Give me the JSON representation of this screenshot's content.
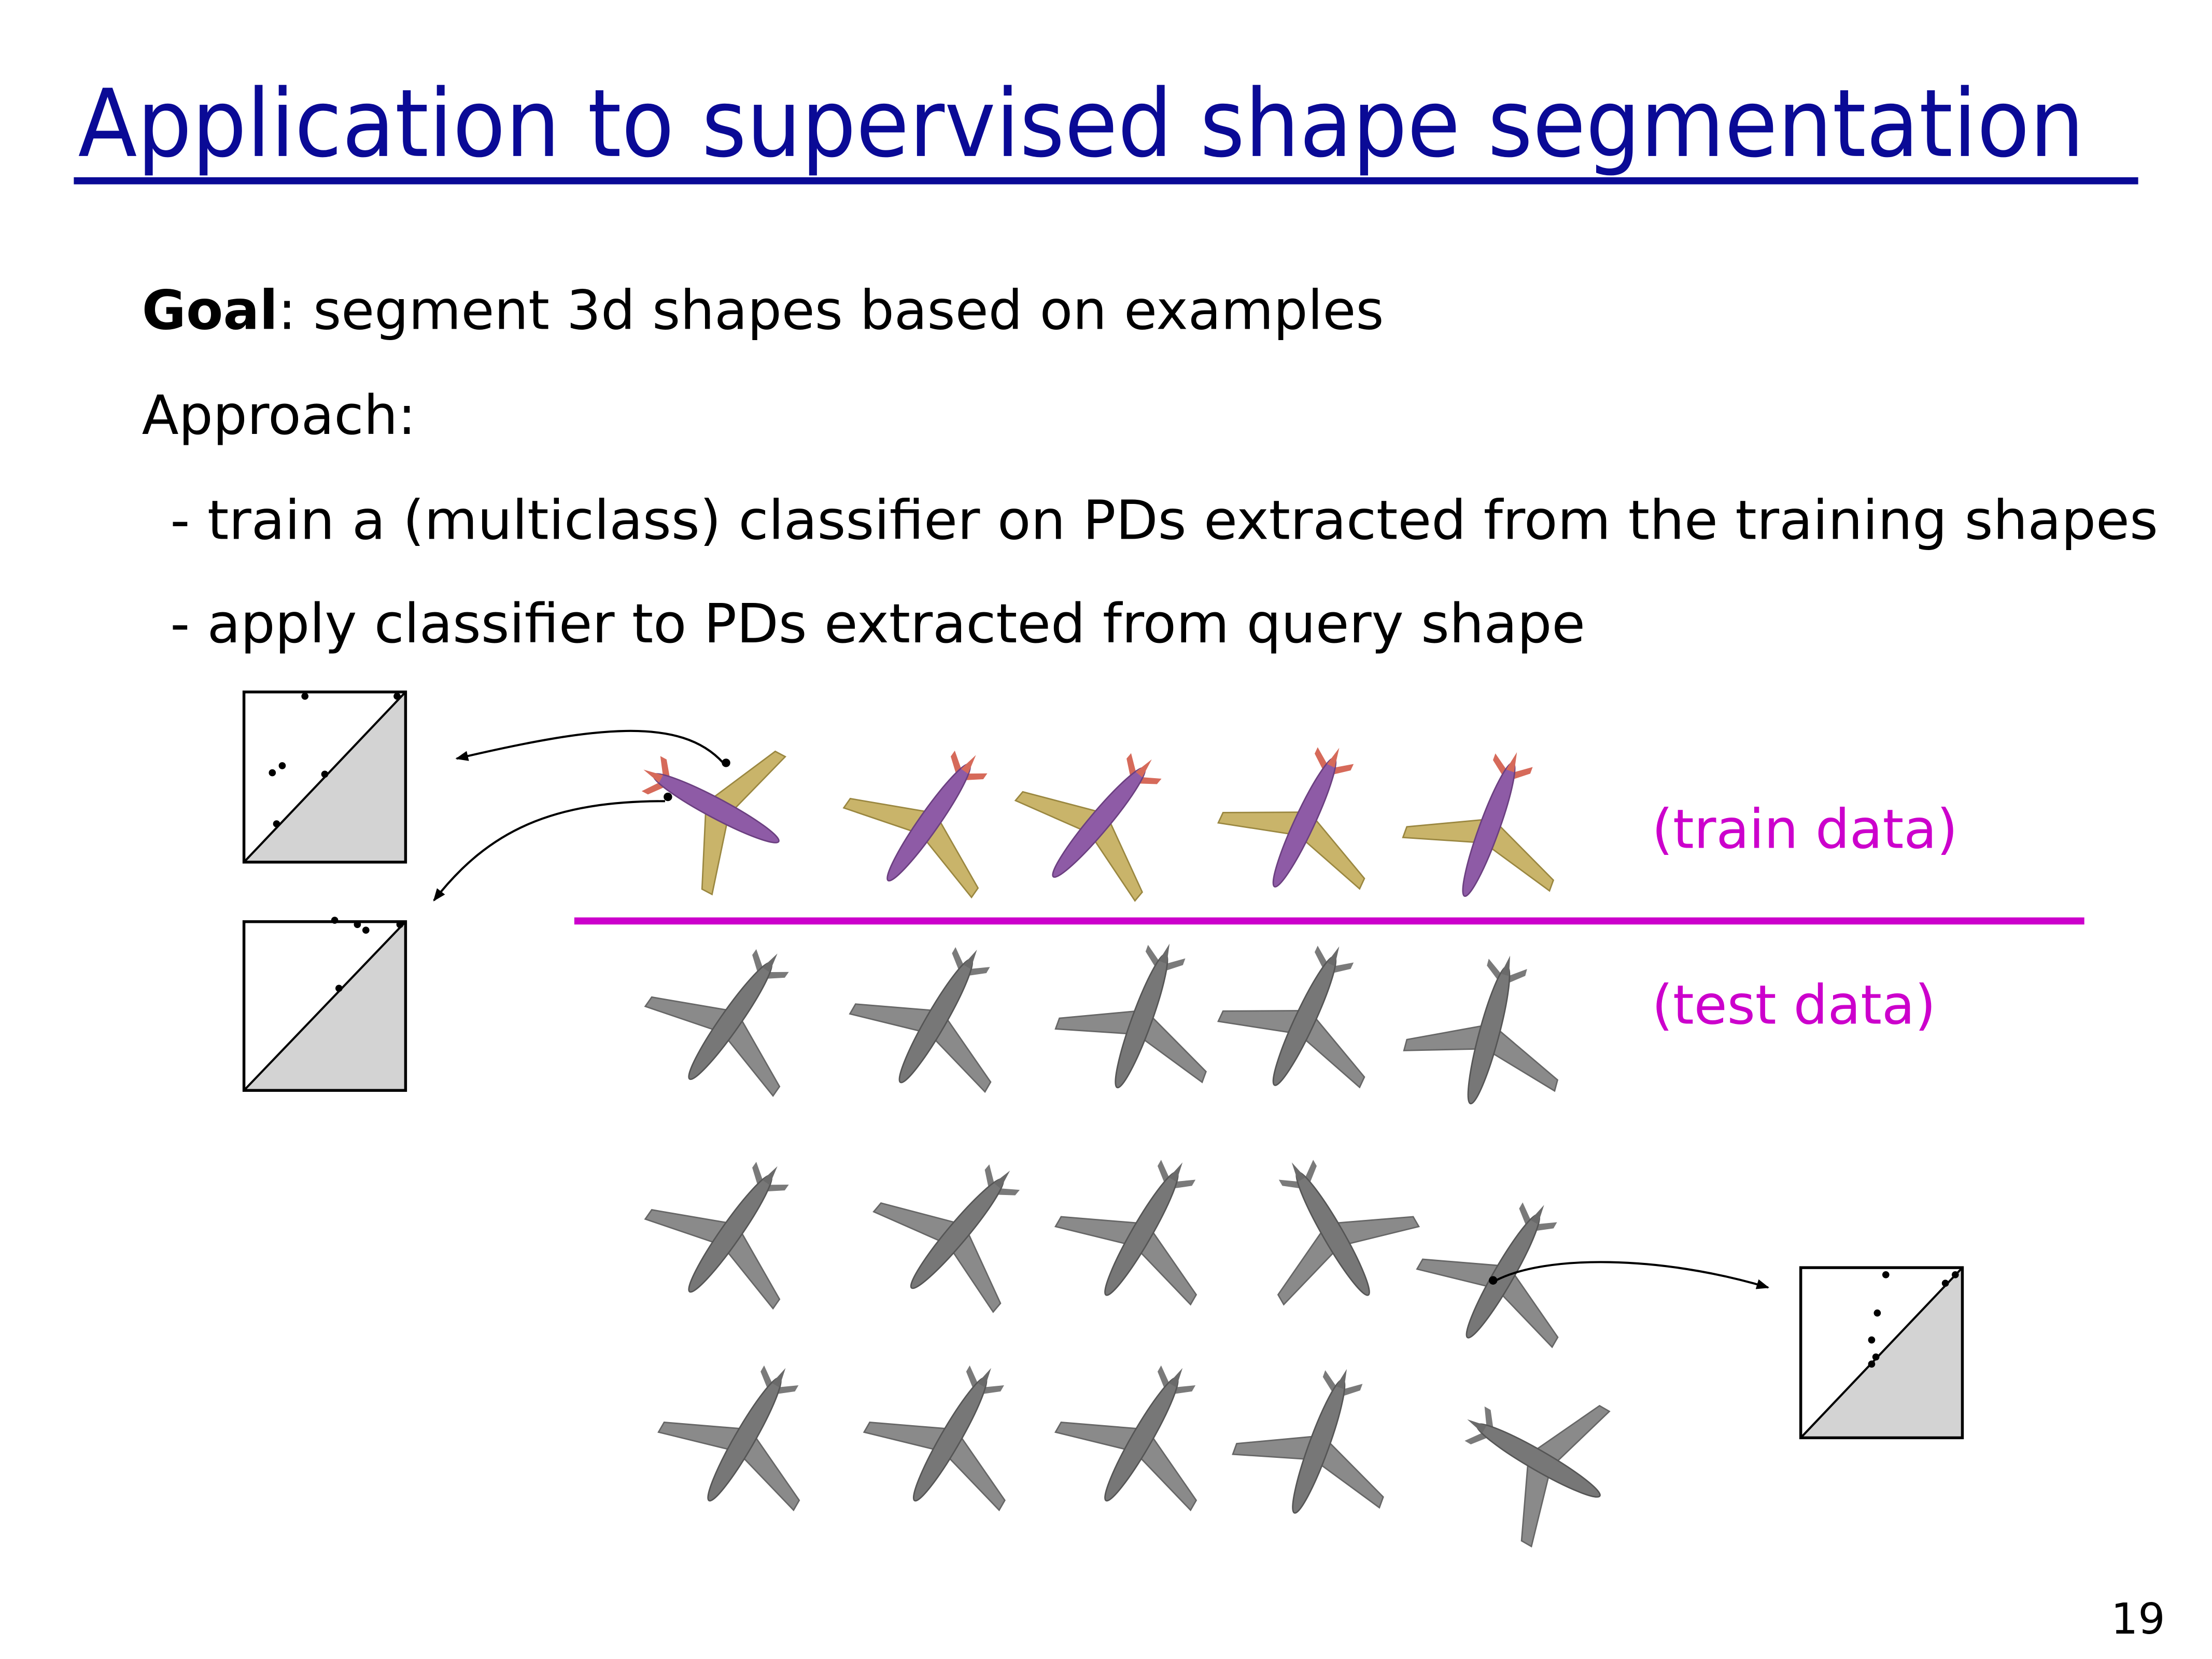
{
  "header": {
    "title": "Application to supervised shape segmentation"
  },
  "content": {
    "goal_label": "Goal",
    "goal_text": ": segment 3d shapes based on examples",
    "approach": "Approach:",
    "bullets": [
      "- train a (multiclass) classifier on PDs extracted from the training shapes",
      "- apply classifier to PDs extracted from query shape"
    ]
  },
  "figure": {
    "train_label": "(train data)",
    "test_label": "(test data)"
  },
  "footer": {
    "page_number": "19"
  }
}
